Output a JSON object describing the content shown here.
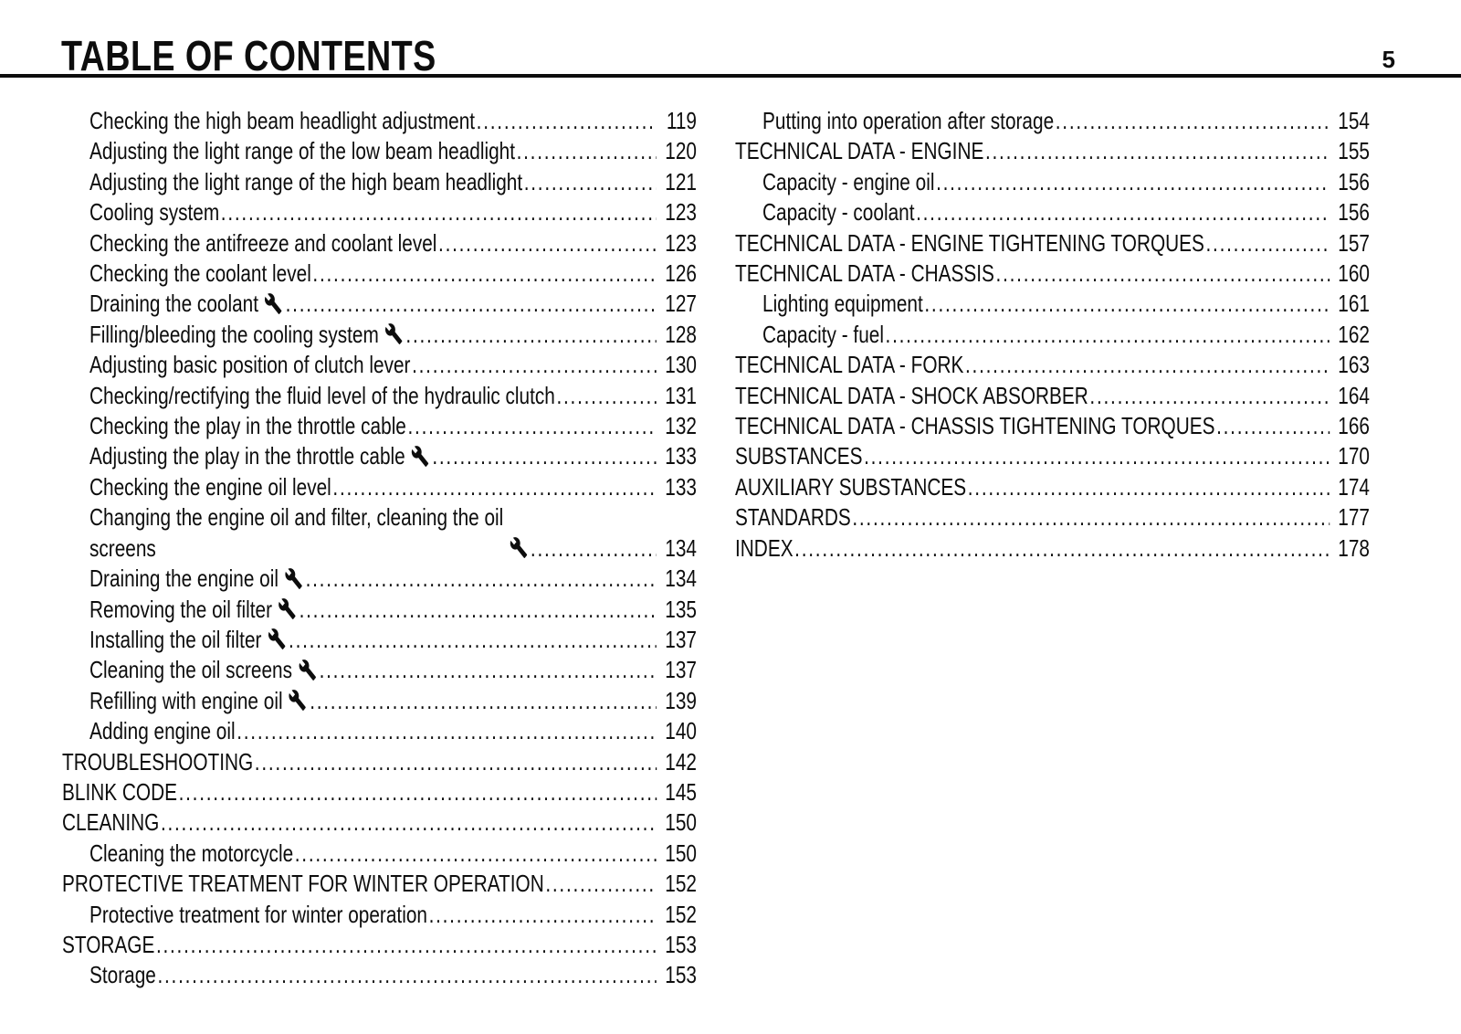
{
  "header": {
    "title": "TABLE OF CONTENTS",
    "page_number": "5"
  },
  "icons": {
    "wrench": "wrench-icon (workshop task marker)"
  },
  "colors": {
    "background": "#ffffff",
    "text": "#0d0d0d",
    "rule": "#0d0d0d"
  },
  "toc": {
    "left_column": [
      {
        "text": "Checking the high beam headlight adjustment",
        "page": "119",
        "level": 1,
        "wrench": false
      },
      {
        "text": "Adjusting the light range of the low beam headlight",
        "page": "120",
        "level": 1,
        "wrench": false
      },
      {
        "text": "Adjusting the light range of the high beam headlight",
        "page": "121",
        "level": 1,
        "wrench": false
      },
      {
        "text": "Cooling system",
        "page": "123",
        "level": 1,
        "wrench": false
      },
      {
        "text": "Checking the antifreeze and coolant level",
        "page": "123",
        "level": 1,
        "wrench": false
      },
      {
        "text": "Checking the coolant level",
        "page": "126",
        "level": 1,
        "wrench": false
      },
      {
        "text": "Draining the coolant",
        "page": "127",
        "level": 1,
        "wrench": true
      },
      {
        "text": "Filling/bleeding the cooling system",
        "page": "128",
        "level": 1,
        "wrench": true
      },
      {
        "text": "Adjusting basic position of clutch lever",
        "page": "130",
        "level": 1,
        "wrench": false
      },
      {
        "text": "Checking/rectifying the fluid level of the hydraulic clutch",
        "page": "131",
        "level": 1,
        "wrench": false
      },
      {
        "text": "Checking the play in the throttle cable",
        "page": "132",
        "level": 1,
        "wrench": false
      },
      {
        "text": "Adjusting the play in the throttle cable",
        "page": "133",
        "level": 1,
        "wrench": true
      },
      {
        "text": "Checking the engine oil level",
        "page": "133",
        "level": 1,
        "wrench": false
      },
      {
        "text": "Changing the engine oil and filter, cleaning the oil\nscreens",
        "page": "134",
        "level": 1,
        "wrench": true
      },
      {
        "text": "Draining the engine oil",
        "page": "134",
        "level": 1,
        "wrench": true
      },
      {
        "text": "Removing the oil filter",
        "page": "135",
        "level": 1,
        "wrench": true
      },
      {
        "text": "Installing the oil filter",
        "page": "137",
        "level": 1,
        "wrench": true
      },
      {
        "text": "Cleaning the oil screens",
        "page": "137",
        "level": 1,
        "wrench": true
      },
      {
        "text": "Refilling with engine oil",
        "page": "139",
        "level": 1,
        "wrench": true
      },
      {
        "text": "Adding engine oil",
        "page": "140",
        "level": 1,
        "wrench": false
      },
      {
        "text": "TROUBLESHOOTING",
        "page": "142",
        "level": 0,
        "wrench": false
      },
      {
        "text": "BLINK CODE",
        "page": "145",
        "level": 0,
        "wrench": false
      },
      {
        "text": "CLEANING",
        "page": "150",
        "level": 0,
        "wrench": false
      },
      {
        "text": "Cleaning the motorcycle",
        "page": "150",
        "level": 1,
        "wrench": false
      },
      {
        "text": "PROTECTIVE TREATMENT FOR WINTER OPERATION",
        "page": "152",
        "level": 0,
        "wrench": false
      },
      {
        "text": "Protective treatment for winter operation",
        "page": "152",
        "level": 1,
        "wrench": false
      },
      {
        "text": "STORAGE",
        "page": "153",
        "level": 0,
        "wrench": false
      },
      {
        "text": "Storage",
        "page": "153",
        "level": 1,
        "wrench": false
      }
    ],
    "right_column": [
      {
        "text": "Putting into operation after storage",
        "page": "154",
        "level": 1,
        "wrench": false
      },
      {
        "text": "TECHNICAL DATA - ENGINE",
        "page": "155",
        "level": 0,
        "wrench": false
      },
      {
        "text": "Capacity - engine oil",
        "page": "156",
        "level": 1,
        "wrench": false
      },
      {
        "text": "Capacity - coolant",
        "page": "156",
        "level": 1,
        "wrench": false
      },
      {
        "text": "TECHNICAL DATA - ENGINE TIGHTENING TORQUES",
        "page": "157",
        "level": 0,
        "wrench": false
      },
      {
        "text": "TECHNICAL DATA - CHASSIS",
        "page": "160",
        "level": 0,
        "wrench": false
      },
      {
        "text": "Lighting equipment",
        "page": "161",
        "level": 1,
        "wrench": false
      },
      {
        "text": "Capacity - fuel",
        "page": "162",
        "level": 1,
        "wrench": false
      },
      {
        "text": "TECHNICAL DATA - FORK",
        "page": "163",
        "level": 0,
        "wrench": false
      },
      {
        "text": "TECHNICAL DATA - SHOCK ABSORBER",
        "page": "164",
        "level": 0,
        "wrench": false
      },
      {
        "text": "TECHNICAL DATA - CHASSIS TIGHTENING TORQUES",
        "page": "166",
        "level": 0,
        "wrench": false
      },
      {
        "text": "SUBSTANCES",
        "page": "170",
        "level": 0,
        "wrench": false
      },
      {
        "text": "AUXILIARY SUBSTANCES",
        "page": "174",
        "level": 0,
        "wrench": false
      },
      {
        "text": "STANDARDS",
        "page": "177",
        "level": 0,
        "wrench": false
      },
      {
        "text": "INDEX",
        "page": "178",
        "level": 0,
        "wrench": false
      }
    ]
  }
}
